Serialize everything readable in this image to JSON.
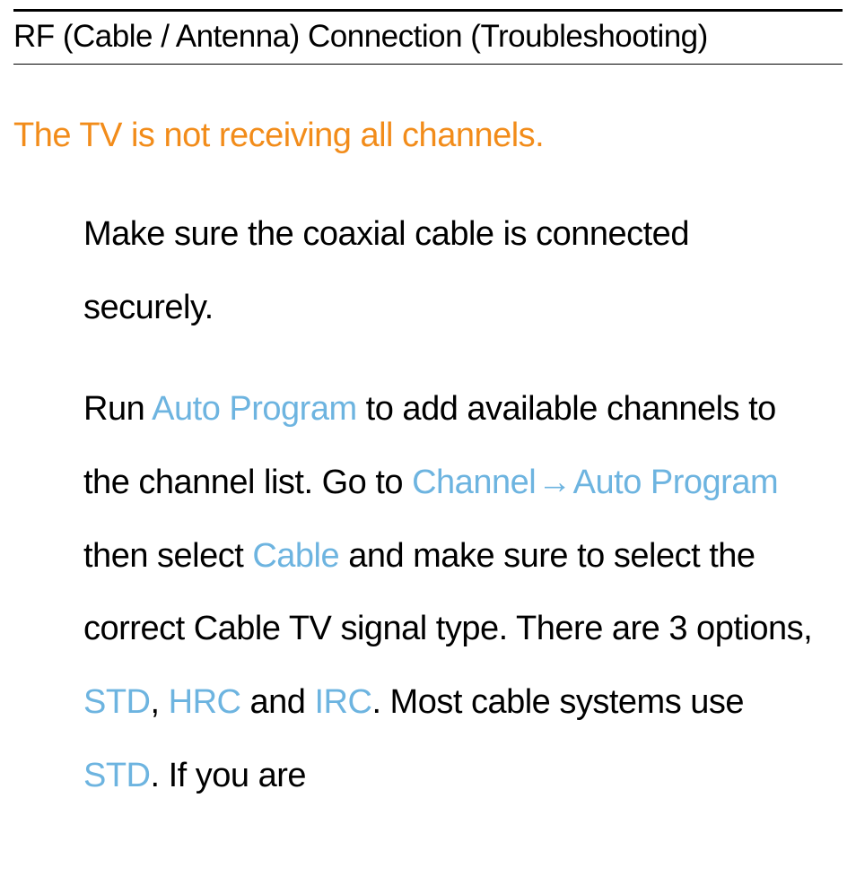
{
  "header": {
    "title": "RF (Cable / Antenna) Connection (Troubleshooting)"
  },
  "section": {
    "heading": "The TV is not receiving all channels."
  },
  "paragraphs": {
    "p1": "Make sure the coaxial cable is connected securely.",
    "p2_part1": "Run ",
    "p2_link1": "Auto Program",
    "p2_part2": " to add available channels to the channel list. Go to ",
    "p2_link2": "Channel",
    "p2_arrow": " → ",
    "p2_link3": "Auto Program",
    "p2_part3": " then select ",
    "p2_link4": "Cable",
    "p2_part4": " and make sure to select the correct Cable TV signal type. There are 3 options, ",
    "p2_link5": "STD",
    "p2_part5": ", ",
    "p2_link6": "HRC",
    "p2_part6": " and ",
    "p2_link7": "IRC",
    "p2_part7": ". Most cable systems use ",
    "p2_link8": "STD",
    "p2_part8": ". If you are"
  },
  "colors": {
    "heading_orange": "#f28c1a",
    "link_blue": "#6db4e0",
    "text_black": "#000000",
    "background": "#ffffff"
  },
  "typography": {
    "header_fontsize": 35,
    "heading_fontsize": 38,
    "body_fontsize": 38,
    "line_height": 2.15
  }
}
